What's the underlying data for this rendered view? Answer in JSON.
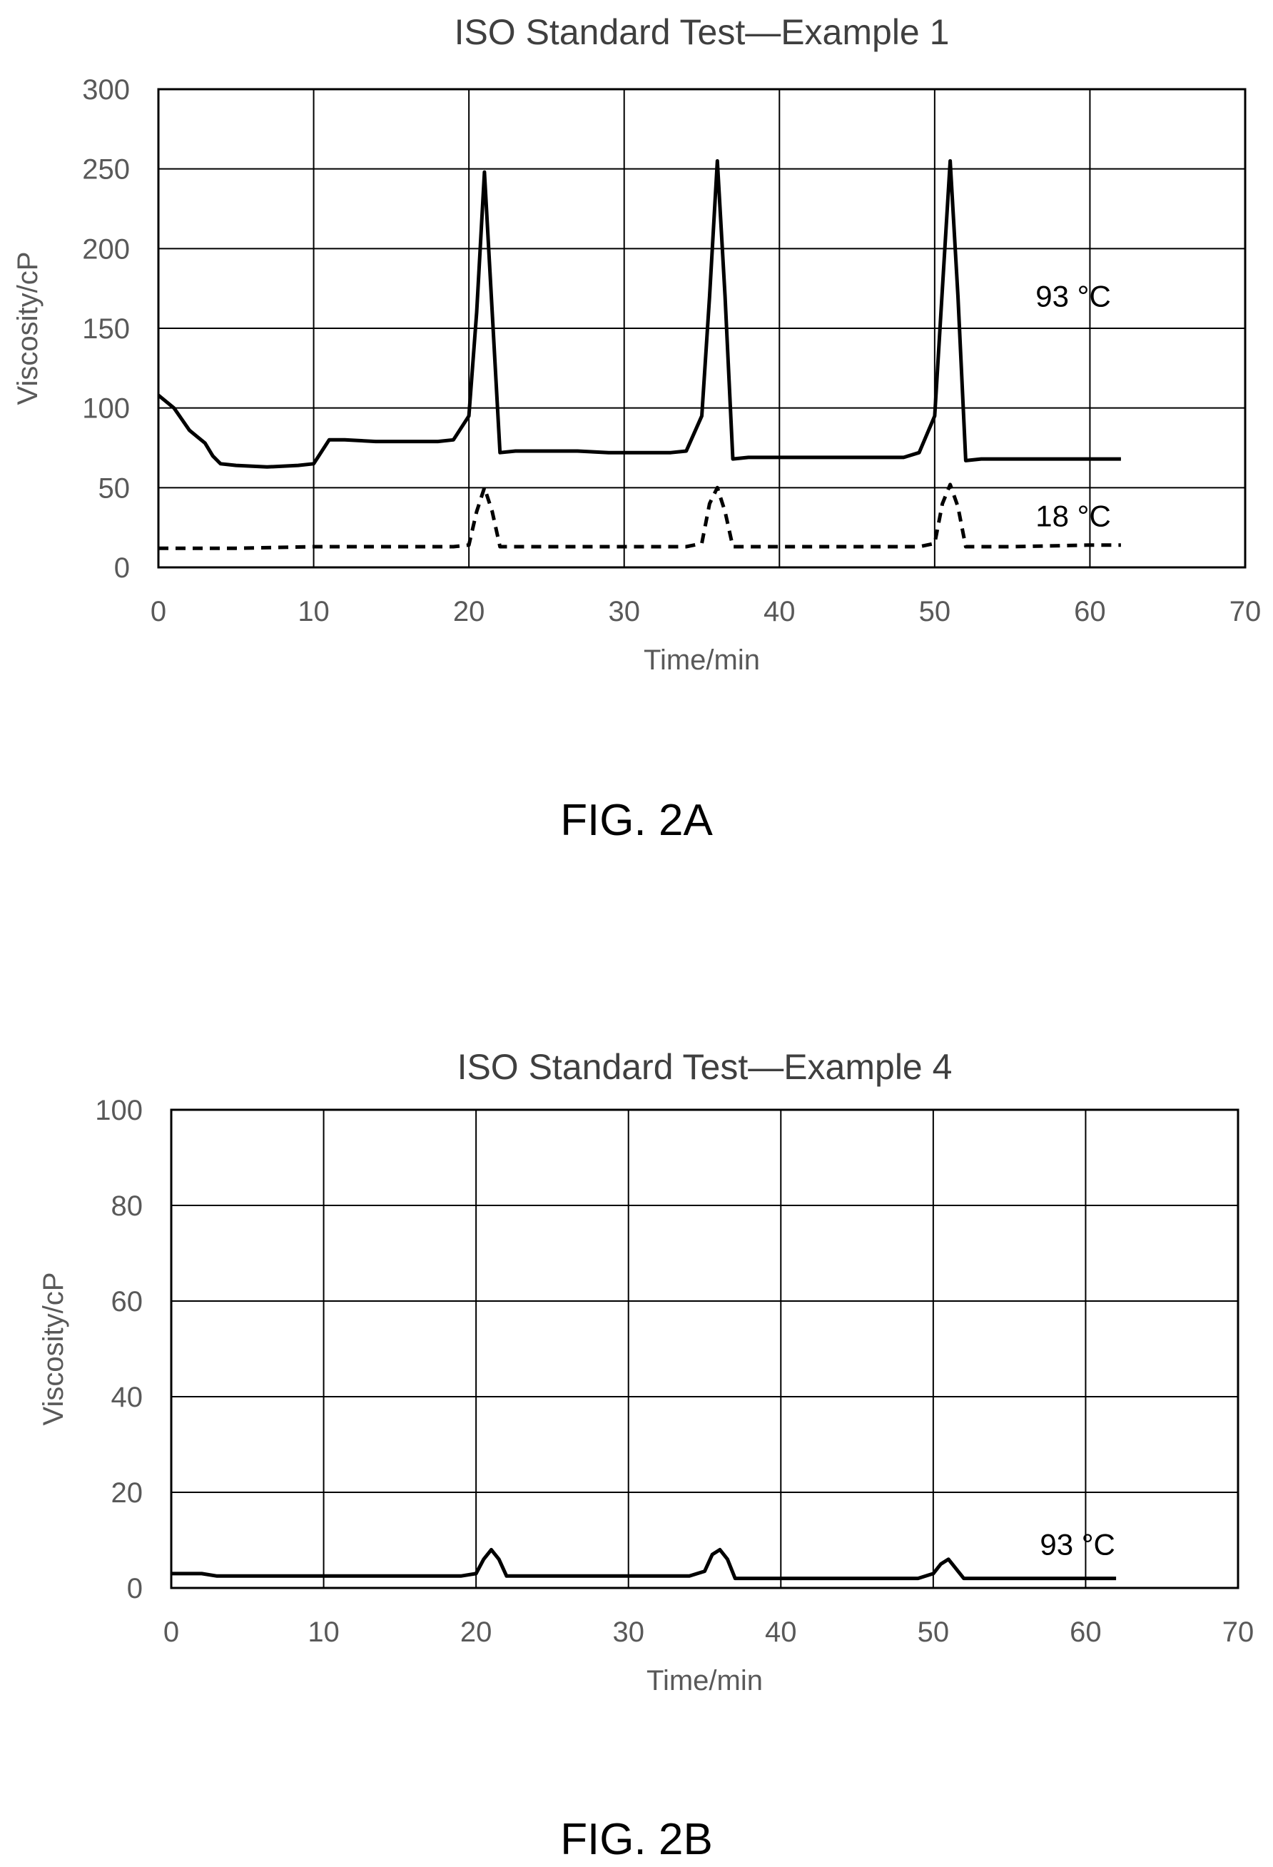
{
  "chart_data": [
    {
      "type": "line",
      "title": "ISO Standard Test—Example 1",
      "xlabel": "Time/min",
      "ylabel": "Viscosity/cP",
      "xlim": [
        0,
        70
      ],
      "ylim": [
        0,
        300
      ],
      "xticks": [
        0,
        10,
        20,
        30,
        40,
        50,
        60,
        70
      ],
      "yticks": [
        0,
        50,
        100,
        150,
        200,
        250,
        300
      ],
      "grid": true,
      "figure_label": "FIG. 2A",
      "annotations": [
        {
          "text": "93 °C",
          "x": 56.5,
          "y": 170
        },
        {
          "text": "18 °C",
          "x": 56.5,
          "y": 32
        }
      ],
      "series": [
        {
          "style": "solid",
          "points": [
            [
              0,
              108
            ],
            [
              1,
              100
            ],
            [
              2,
              86
            ],
            [
              2.5,
              82
            ],
            [
              3,
              78
            ],
            [
              3.5,
              70
            ],
            [
              4,
              65
            ],
            [
              5,
              64
            ],
            [
              7,
              63
            ],
            [
              9,
              64
            ],
            [
              10,
              65
            ],
            [
              11,
              80
            ],
            [
              12,
              80
            ],
            [
              14,
              79
            ],
            [
              16,
              79
            ],
            [
              18,
              79
            ],
            [
              19,
              80
            ],
            [
              20,
              95
            ],
            [
              20.5,
              160
            ],
            [
              21,
              248
            ],
            [
              21.5,
              160
            ],
            [
              22,
              72
            ],
            [
              23,
              73
            ],
            [
              25,
              73
            ],
            [
              27,
              73
            ],
            [
              29,
              72
            ],
            [
              31,
              72
            ],
            [
              33,
              72
            ],
            [
              34,
              73
            ],
            [
              35,
              95
            ],
            [
              35.5,
              170
            ],
            [
              36,
              255
            ],
            [
              36.5,
              170
            ],
            [
              37,
              68
            ],
            [
              38,
              69
            ],
            [
              40,
              69
            ],
            [
              42,
              69
            ],
            [
              44,
              69
            ],
            [
              46,
              69
            ],
            [
              48,
              69
            ],
            [
              49,
              72
            ],
            [
              50,
              95
            ],
            [
              50.5,
              175
            ],
            [
              51,
              255
            ],
            [
              51.5,
              170
            ],
            [
              52,
              67
            ],
            [
              53,
              68
            ],
            [
              55,
              68
            ],
            [
              57,
              68
            ],
            [
              59,
              68
            ],
            [
              62,
              68
            ]
          ]
        },
        {
          "style": "dashed",
          "points": [
            [
              0,
              12
            ],
            [
              5,
              12
            ],
            [
              10,
              13
            ],
            [
              15,
              13
            ],
            [
              19,
              13
            ],
            [
              20,
              14
            ],
            [
              20.5,
              35
            ],
            [
              21,
              50
            ],
            [
              21.5,
              35
            ],
            [
              22,
              13
            ],
            [
              25,
              13
            ],
            [
              30,
              13
            ],
            [
              34,
              13
            ],
            [
              35,
              15
            ],
            [
              35.5,
              40
            ],
            [
              36,
              50
            ],
            [
              36.5,
              35
            ],
            [
              37,
              13
            ],
            [
              40,
              13
            ],
            [
              45,
              13
            ],
            [
              49,
              13
            ],
            [
              50,
              15
            ],
            [
              50.5,
              40
            ],
            [
              51,
              52
            ],
            [
              51.5,
              38
            ],
            [
              52,
              13
            ],
            [
              55,
              13
            ],
            [
              60,
              14
            ],
            [
              62,
              14
            ]
          ]
        }
      ]
    },
    {
      "type": "line",
      "title": "ISO Standard Test—Example 4",
      "xlabel": "Time/min",
      "ylabel": "Viscosity/cP",
      "xlim": [
        0,
        70
      ],
      "ylim": [
        0,
        100
      ],
      "xticks": [
        0,
        10,
        20,
        30,
        40,
        50,
        60,
        70
      ],
      "yticks": [
        0,
        20,
        40,
        60,
        80,
        100
      ],
      "grid": true,
      "figure_label": "FIG. 2B",
      "annotations": [
        {
          "text": "93 °C",
          "x": 57,
          "y": 9
        }
      ],
      "series": [
        {
          "style": "solid",
          "points": [
            [
              0,
              3
            ],
            [
              2,
              3
            ],
            [
              3,
              2.5
            ],
            [
              5,
              2.5
            ],
            [
              10,
              2.5
            ],
            [
              15,
              2.5
            ],
            [
              19,
              2.5
            ],
            [
              20,
              3
            ],
            [
              20.5,
              6
            ],
            [
              21,
              8
            ],
            [
              21.5,
              6
            ],
            [
              22,
              2.5
            ],
            [
              25,
              2.5
            ],
            [
              30,
              2.5
            ],
            [
              34,
              2.5
            ],
            [
              35,
              3.5
            ],
            [
              35.5,
              7
            ],
            [
              36,
              8
            ],
            [
              36.5,
              6
            ],
            [
              37,
              2
            ],
            [
              40,
              2
            ],
            [
              45,
              2
            ],
            [
              49,
              2
            ],
            [
              50,
              3
            ],
            [
              50.5,
              5
            ],
            [
              51,
              6
            ],
            [
              51.5,
              4
            ],
            [
              52,
              2
            ],
            [
              55,
              2
            ],
            [
              60,
              2
            ],
            [
              62,
              2
            ]
          ]
        }
      ]
    }
  ]
}
